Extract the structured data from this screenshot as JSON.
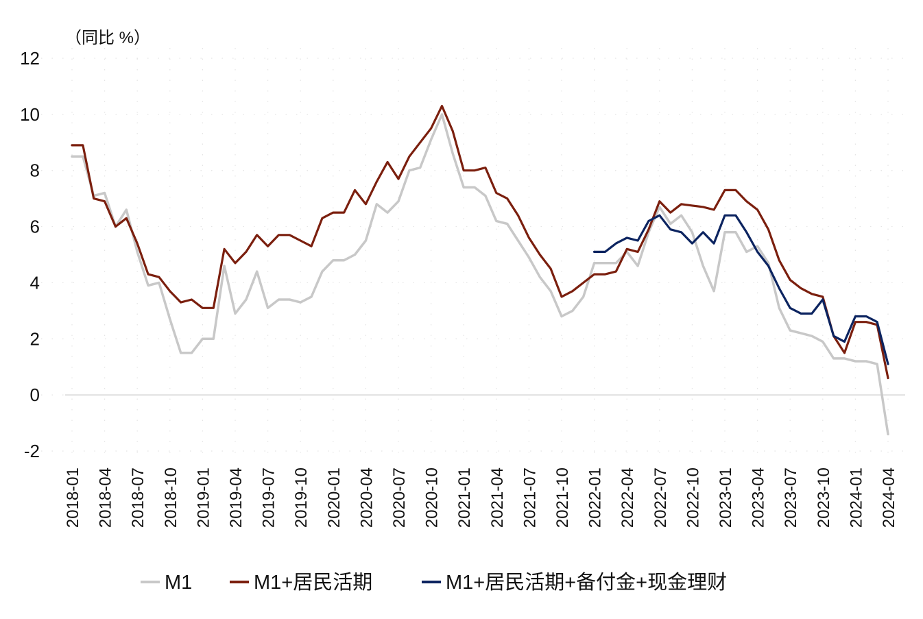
{
  "chart_data": {
    "type": "line",
    "unit_label": "（同比 %）",
    "ylim": [
      -2,
      12
    ],
    "yticks": [
      "12",
      "10",
      "8",
      "6",
      "4",
      "2",
      "0",
      "-2"
    ],
    "xtick_labels": [
      "2018-01",
      "2018-04",
      "2018-07",
      "2018-10",
      "2019-01",
      "2019-04",
      "2019-07",
      "2019-10",
      "2020-01",
      "2020-04",
      "2020-07",
      "2020-10",
      "2021-01",
      "2021-04",
      "2021-07",
      "2021-10",
      "2022-01",
      "2022-04",
      "2022-07",
      "2022-10",
      "2023-01",
      "2023-04",
      "2023-07",
      "2023-10",
      "2024-01",
      "2024-04"
    ],
    "x_start": "2018-01",
    "x_end": "2024-04",
    "grid": false,
    "legend_position": "bottom",
    "series": [
      {
        "name": "M1",
        "color": "#c8c8c8",
        "start": "2018-01",
        "values": [
          8.5,
          8.5,
          7.1,
          7.2,
          6.0,
          6.6,
          5.1,
          3.9,
          4.0,
          2.7,
          1.5,
          1.5,
          2.0,
          2.0,
          4.6,
          2.9,
          3.4,
          4.4,
          3.1,
          3.4,
          3.4,
          3.3,
          3.5,
          4.4,
          4.8,
          4.8,
          5.0,
          5.5,
          6.8,
          6.5,
          6.9,
          8.0,
          8.1,
          9.1,
          10.0,
          8.6,
          7.4,
          7.4,
          7.1,
          6.2,
          6.1,
          5.5,
          4.9,
          4.2,
          3.7,
          2.8,
          3.0,
          3.5,
          4.7,
          4.7,
          4.7,
          5.1,
          4.6,
          5.8,
          6.7,
          6.1,
          6.4,
          5.8,
          4.6,
          3.7,
          5.8,
          5.8,
          5.1,
          5.3,
          4.7,
          3.1,
          2.3,
          2.2,
          2.1,
          1.9,
          1.3,
          1.3,
          1.2,
          1.2,
          1.1,
          -1.4
        ]
      },
      {
        "name": "M1+居民活期",
        "color": "#7b1f0e",
        "start": "2018-01",
        "values": [
          8.9,
          8.9,
          7.0,
          6.9,
          6.0,
          6.3,
          5.4,
          4.3,
          4.2,
          3.7,
          3.3,
          3.4,
          3.1,
          3.1,
          5.2,
          4.7,
          5.1,
          5.7,
          5.3,
          5.7,
          5.7,
          5.5,
          5.3,
          6.3,
          6.5,
          6.5,
          7.3,
          6.8,
          7.6,
          8.3,
          7.7,
          8.5,
          9.0,
          9.5,
          10.3,
          9.4,
          8.0,
          8.0,
          8.1,
          7.2,
          7.0,
          6.4,
          5.6,
          5.0,
          4.5,
          3.5,
          3.7,
          4.0,
          4.3,
          4.3,
          4.4,
          5.2,
          5.1,
          5.9,
          6.9,
          6.5,
          6.8,
          6.75,
          6.7,
          6.6,
          7.3,
          7.3,
          6.9,
          6.6,
          5.9,
          4.8,
          4.1,
          3.8,
          3.6,
          3.5,
          2.1,
          1.5,
          2.6,
          2.6,
          2.5,
          0.6
        ]
      },
      {
        "name": "M1+居民活期+备付金+现金理财",
        "color": "#0c2460",
        "start": "2022-01",
        "values": [
          5.1,
          5.1,
          5.4,
          5.6,
          5.5,
          6.2,
          6.4,
          5.9,
          5.8,
          5.4,
          5.8,
          5.4,
          6.4,
          6.4,
          5.8,
          5.1,
          4.6,
          3.8,
          3.1,
          2.9,
          2.9,
          3.4,
          2.1,
          1.9,
          2.8,
          2.8,
          2.6,
          1.1
        ]
      }
    ]
  }
}
